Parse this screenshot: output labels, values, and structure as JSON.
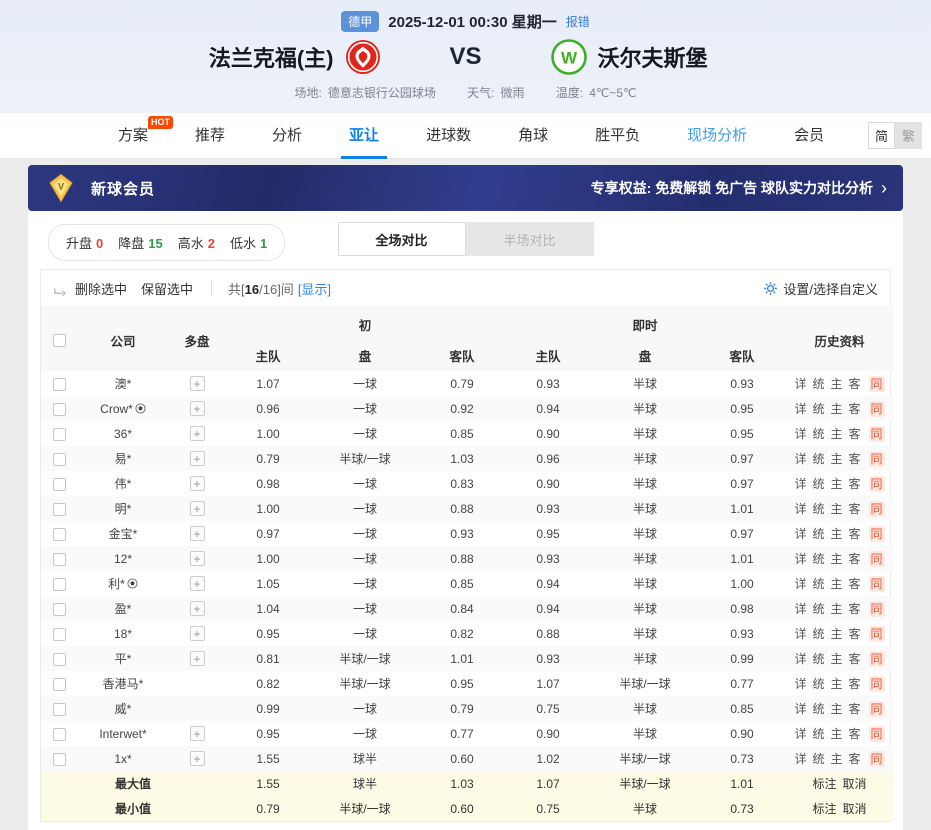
{
  "match_header": {
    "league_badge": "德甲",
    "datetime": "2025-12-01 00:30 星期一",
    "report_error": "报错",
    "home_team": "法兰克福(主)",
    "vs": "VS",
    "away_team": "沃尔夫斯堡",
    "venue_label": "场地:",
    "venue": "德意志银行公园球场",
    "weather_label": "天气:",
    "weather": "微雨",
    "temp_label": "温度:",
    "temp": "4℃~5℃"
  },
  "nav": {
    "tabs": [
      {
        "label": "方案",
        "badge": "HOT"
      },
      {
        "label": "推荐"
      },
      {
        "label": "分析"
      },
      {
        "label": "亚让",
        "active": true
      },
      {
        "label": "进球数"
      },
      {
        "label": "角球"
      },
      {
        "label": "胜平负"
      },
      {
        "label": "现场分析",
        "highlight": true
      },
      {
        "label": "会员"
      }
    ],
    "lang_simplified": "简",
    "lang_traditional": "繁"
  },
  "vip_banner": {
    "title": "新球会员",
    "benefits": "专享权益: 免费解锁 免广告 球队实力对比分析",
    "arrow": "›"
  },
  "filter_bar": {
    "stats": [
      {
        "label": "升盘",
        "value": "0",
        "color": "#e8442f"
      },
      {
        "label": "降盘",
        "value": "15",
        "color": "#2f9e44"
      },
      {
        "label": "高水",
        "value": "2",
        "color": "#e8442f"
      },
      {
        "label": "低水",
        "value": "1",
        "color": "#2f9e44"
      }
    ],
    "full_match_tab": "全场对比",
    "half_match_tab": "半场对比"
  },
  "control_bar": {
    "delete_selected": "删除选中",
    "keep_selected": "保留选中",
    "count_prefix": "共[",
    "count_value": "16",
    "count_suffix": "/16]间",
    "show_link": "[显示]",
    "settings": "设置/选择自定义"
  },
  "odds_table": {
    "col_company": "公司",
    "col_multi": "多盘",
    "col_initial": "初",
    "col_live": "即时",
    "col_history": "历史资料",
    "col_home": "主队",
    "col_handicap": "盘",
    "col_away": "客队",
    "history_links": [
      "详",
      "统",
      "主",
      "客"
    ],
    "history_same": "同",
    "rows": [
      {
        "company": "澳*",
        "ball": false,
        "multi": true,
        "init_home": "1.07",
        "init_handicap": "一球",
        "init_away": "0.79",
        "live_home": "0.93",
        "live_handicap": "半球",
        "live_away": "0.93"
      },
      {
        "company": "Crow*",
        "ball": true,
        "multi": true,
        "init_home": "0.96",
        "init_handicap": "一球",
        "init_away": "0.92",
        "live_home": "0.94",
        "live_handicap": "半球",
        "live_away": "0.95"
      },
      {
        "company": "36*",
        "ball": false,
        "multi": true,
        "init_home": "1.00",
        "init_handicap": "一球",
        "init_away": "0.85",
        "live_home": "0.90",
        "live_handicap": "半球",
        "live_away": "0.95"
      },
      {
        "company": "易*",
        "ball": false,
        "multi": true,
        "init_home": "0.79",
        "init_handicap": "半球/一球",
        "init_away": "1.03",
        "live_home": "0.96",
        "live_handicap": "半球",
        "live_away": "0.97"
      },
      {
        "company": "伟*",
        "ball": false,
        "multi": true,
        "init_home": "0.98",
        "init_handicap": "一球",
        "init_away": "0.83",
        "live_home": "0.90",
        "live_handicap": "半球",
        "live_away": "0.97"
      },
      {
        "company": "明*",
        "ball": false,
        "multi": true,
        "init_home": "1.00",
        "init_handicap": "一球",
        "init_away": "0.88",
        "live_home": "0.93",
        "live_handicap": "半球",
        "live_away": "1.01"
      },
      {
        "company": "金宝*",
        "ball": false,
        "multi": true,
        "init_home": "0.97",
        "init_handicap": "一球",
        "init_away": "0.93",
        "live_home": "0.95",
        "live_handicap": "半球",
        "live_away": "0.97"
      },
      {
        "company": "12*",
        "ball": false,
        "multi": true,
        "init_home": "1.00",
        "init_handicap": "一球",
        "init_away": "0.88",
        "live_home": "0.93",
        "live_handicap": "半球",
        "live_away": "1.01"
      },
      {
        "company": "利*",
        "ball": true,
        "multi": true,
        "init_home": "1.05",
        "init_handicap": "一球",
        "init_away": "0.85",
        "live_home": "0.94",
        "live_handicap": "半球",
        "live_away": "1.00"
      },
      {
        "company": "盈*",
        "ball": false,
        "multi": true,
        "init_home": "1.04",
        "init_handicap": "一球",
        "init_away": "0.84",
        "live_home": "0.94",
        "live_handicap": "半球",
        "live_away": "0.98"
      },
      {
        "company": "18*",
        "ball": false,
        "multi": true,
        "init_home": "0.95",
        "init_handicap": "一球",
        "init_away": "0.82",
        "live_home": "0.88",
        "live_handicap": "半球",
        "live_away": "0.93"
      },
      {
        "company": "平*",
        "ball": false,
        "multi": true,
        "init_home": "0.81",
        "init_handicap": "半球/一球",
        "init_away": "1.01",
        "live_home": "0.93",
        "live_handicap": "半球",
        "live_away": "0.99"
      },
      {
        "company": "香港马*",
        "ball": false,
        "multi": false,
        "init_home": "0.82",
        "init_handicap": "半球/一球",
        "init_away": "0.95",
        "live_home": "1.07",
        "live_handicap": "半球/一球",
        "live_away": "0.77"
      },
      {
        "company": "威*",
        "ball": false,
        "multi": false,
        "init_home": "0.99",
        "init_handicap": "一球",
        "init_away": "0.79",
        "live_home": "0.75",
        "live_handicap": "半球",
        "live_away": "0.85"
      },
      {
        "company": "Interwet*",
        "ball": false,
        "multi": true,
        "init_home": "0.95",
        "init_handicap": "一球",
        "init_away": "0.77",
        "live_home": "0.90",
        "live_handicap": "半球",
        "live_away": "0.90"
      },
      {
        "company": "1x*",
        "ball": false,
        "multi": true,
        "init_home": "1.55",
        "init_handicap": "球半",
        "init_away": "0.60",
        "live_home": "1.02",
        "live_handicap": "半球/一球",
        "live_away": "0.73"
      }
    ],
    "summary_rows": [
      {
        "label": "最大值",
        "init_home": "1.55",
        "init_handicap": "球半",
        "init_away": "1.03",
        "live_home": "1.07",
        "live_handicap": "半球/一球",
        "live_away": "1.01",
        "mark": "标注",
        "cancel": "取消"
      },
      {
        "label": "最小值",
        "init_home": "0.79",
        "init_handicap": "半球/一球",
        "init_away": "0.60",
        "live_home": "0.75",
        "live_handicap": "半球",
        "live_away": "0.73",
        "mark": "标注",
        "cancel": "取消"
      }
    ]
  }
}
